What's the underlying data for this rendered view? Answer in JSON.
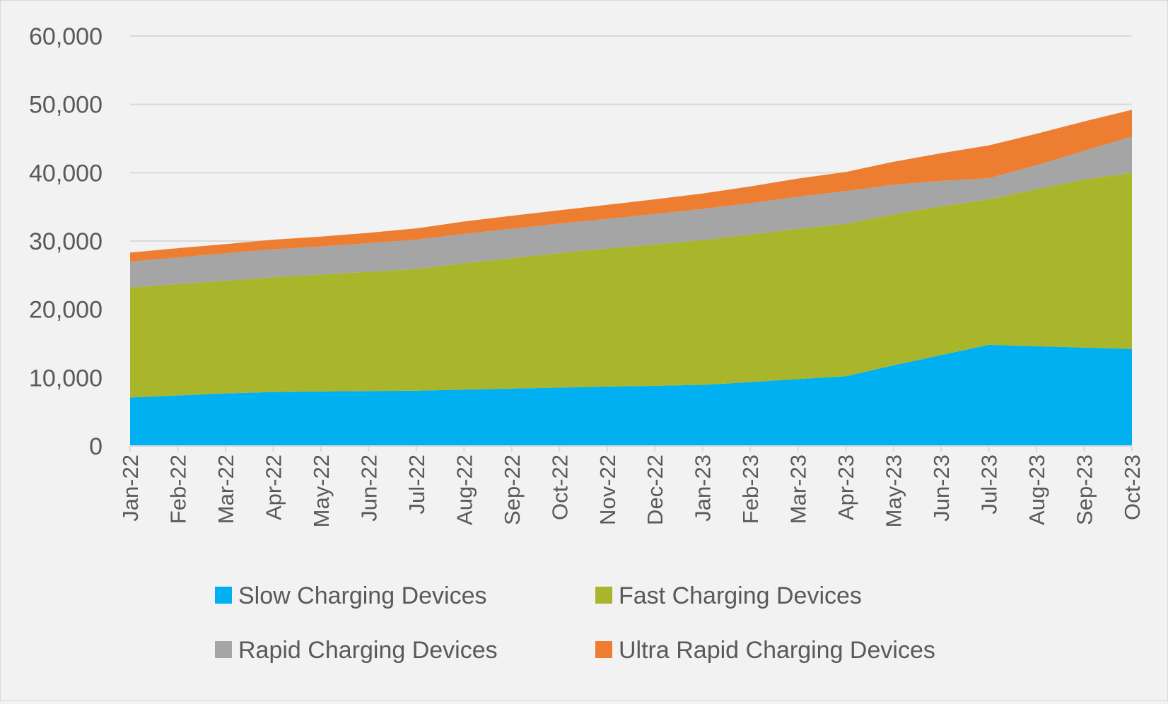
{
  "chart_data": {
    "type": "area",
    "stacked": true,
    "categories": [
      "Jan-22",
      "Feb-22",
      "Mar-22",
      "Apr-22",
      "May-22",
      "Jun-22",
      "Jul-22",
      "Aug-22",
      "Sep-22",
      "Oct-22",
      "Nov-22",
      "Dec-22",
      "Jan-23",
      "Feb-23",
      "Mar-23",
      "Apr-23",
      "May-23",
      "Jun-23",
      "Jul-23",
      "Aug-23",
      "Sep-23",
      "Oct-23"
    ],
    "series": [
      {
        "name": "Slow Charging Devices",
        "color": "#00b0f0",
        "values": [
          7100,
          7400,
          7700,
          7900,
          8000,
          8050,
          8100,
          8250,
          8400,
          8550,
          8700,
          8800,
          8950,
          9350,
          9800,
          10200,
          11800,
          13300,
          14800,
          14600,
          14400,
          14200
        ]
      },
      {
        "name": "Fast Charging Devices",
        "color": "#a9b52b",
        "values": [
          16100,
          16300,
          16500,
          16800,
          17100,
          17450,
          17800,
          18500,
          19100,
          19700,
          20200,
          20700,
          21200,
          21600,
          22000,
          22300,
          22100,
          21800,
          21300,
          23000,
          24600,
          25800
        ]
      },
      {
        "name": "Rapid Charging Devices",
        "color": "#a5a5a5",
        "values": [
          3800,
          3900,
          4000,
          4100,
          4100,
          4200,
          4300,
          4300,
          4300,
          4300,
          4350,
          4450,
          4550,
          4600,
          4700,
          4800,
          4350,
          3700,
          3100,
          3500,
          4200,
          5300
        ]
      },
      {
        "name": "Ultra Rapid Charging Devices",
        "color": "#ed7d31",
        "values": [
          1300,
          1350,
          1350,
          1400,
          1450,
          1500,
          1650,
          1800,
          1900,
          1950,
          2050,
          2150,
          2250,
          2450,
          2650,
          2800,
          3350,
          4050,
          4800,
          4600,
          4300,
          3900
        ]
      }
    ],
    "yticks": [
      "0",
      "10,000",
      "20,000",
      "30,000",
      "40,000",
      "50,000",
      "60,000"
    ],
    "ylim": [
      0,
      60000
    ],
    "grid": true,
    "legend_position": "bottom"
  }
}
